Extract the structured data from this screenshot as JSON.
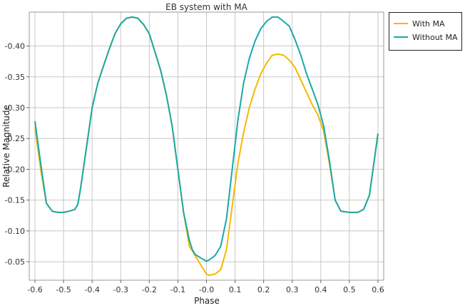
{
  "chart_data": {
    "type": "line",
    "title": "EB system with MA",
    "xlabel": "Phase",
    "ylabel": "Relative Magnitude",
    "xlim": [
      -0.62,
      0.62
    ],
    "ylim": [
      -0.02,
      -0.455
    ],
    "y_inverted": true,
    "grid": true,
    "legend_position": "top-right-outside",
    "x_ticks": [
      -0.6,
      -0.5,
      -0.4,
      -0.3,
      -0.2,
      -0.1,
      0.0,
      0.1,
      0.2,
      0.3,
      0.4,
      0.5,
      0.6
    ],
    "x_tick_labels": [
      "-0.6",
      "-0.5",
      "-0.4",
      "-0.3",
      "-0.2",
      "-0.1",
      "-0.0",
      "0.1",
      "0.2",
      "0.3",
      "0.4",
      "0.5",
      "0.6"
    ],
    "y_ticks": [
      -0.05,
      -0.1,
      -0.15,
      -0.2,
      -0.25,
      -0.3,
      -0.35,
      -0.4
    ],
    "y_tick_labels": [
      "-0.05",
      "-0.10",
      "-0.15",
      "-0.20",
      "-0.25",
      "-0.30",
      "-0.35",
      "-0.40"
    ],
    "series": [
      {
        "name": "With MA",
        "color": "#f5b800",
        "x": [
          -0.6,
          -0.58,
          -0.56,
          -0.54,
          -0.52,
          -0.5,
          -0.48,
          -0.46,
          -0.45,
          -0.44,
          -0.42,
          -0.4,
          -0.38,
          -0.36,
          -0.34,
          -0.32,
          -0.3,
          -0.28,
          -0.26,
          -0.24,
          -0.22,
          -0.2,
          -0.18,
          -0.16,
          -0.14,
          -0.12,
          -0.1,
          -0.08,
          -0.06,
          -0.05,
          -0.04,
          -0.02,
          0.0,
          0.01,
          0.03,
          0.05,
          0.07,
          0.09,
          0.11,
          0.13,
          0.15,
          0.17,
          0.19,
          0.21,
          0.23,
          0.25,
          0.27,
          0.29,
          0.31,
          0.33,
          0.35,
          0.37,
          0.39,
          0.41,
          0.43,
          0.45,
          0.47,
          0.5,
          0.53,
          0.55,
          0.57,
          0.6
        ],
        "y": [
          -0.268,
          -0.2,
          -0.145,
          -0.132,
          -0.13,
          -0.13,
          -0.132,
          -0.135,
          -0.143,
          -0.17,
          -0.235,
          -0.3,
          -0.34,
          -0.368,
          -0.395,
          -0.42,
          -0.436,
          -0.445,
          -0.447,
          -0.445,
          -0.435,
          -0.42,
          -0.39,
          -0.36,
          -0.32,
          -0.27,
          -0.2,
          -0.13,
          -0.075,
          -0.068,
          -0.06,
          -0.045,
          -0.03,
          -0.028,
          -0.03,
          -0.037,
          -0.07,
          -0.14,
          -0.21,
          -0.26,
          -0.3,
          -0.33,
          -0.355,
          -0.372,
          -0.385,
          -0.387,
          -0.385,
          -0.377,
          -0.365,
          -0.345,
          -0.325,
          -0.305,
          -0.288,
          -0.262,
          -0.21,
          -0.15,
          -0.132,
          -0.13,
          -0.13,
          -0.135,
          -0.158,
          -0.258
        ]
      },
      {
        "name": "Without MA",
        "color": "#1aa8a8",
        "x": [
          -0.6,
          -0.58,
          -0.56,
          -0.54,
          -0.52,
          -0.5,
          -0.48,
          -0.46,
          -0.45,
          -0.44,
          -0.42,
          -0.4,
          -0.38,
          -0.36,
          -0.34,
          -0.32,
          -0.3,
          -0.28,
          -0.26,
          -0.24,
          -0.22,
          -0.2,
          -0.18,
          -0.16,
          -0.14,
          -0.12,
          -0.1,
          -0.08,
          -0.06,
          -0.05,
          -0.04,
          -0.02,
          0.0,
          0.01,
          0.03,
          0.05,
          0.07,
          0.09,
          0.11,
          0.13,
          0.15,
          0.17,
          0.19,
          0.21,
          0.23,
          0.25,
          0.27,
          0.29,
          0.31,
          0.33,
          0.35,
          0.37,
          0.39,
          0.41,
          0.43,
          0.45,
          0.47,
          0.5,
          0.53,
          0.55,
          0.57,
          0.6
        ],
        "y": [
          -0.278,
          -0.21,
          -0.145,
          -0.132,
          -0.13,
          -0.13,
          -0.132,
          -0.135,
          -0.143,
          -0.17,
          -0.235,
          -0.3,
          -0.34,
          -0.368,
          -0.395,
          -0.42,
          -0.436,
          -0.445,
          -0.447,
          -0.445,
          -0.435,
          -0.42,
          -0.39,
          -0.36,
          -0.32,
          -0.27,
          -0.2,
          -0.13,
          -0.085,
          -0.07,
          -0.062,
          -0.056,
          -0.051,
          -0.053,
          -0.06,
          -0.075,
          -0.12,
          -0.2,
          -0.28,
          -0.34,
          -0.38,
          -0.408,
          -0.428,
          -0.44,
          -0.447,
          -0.447,
          -0.44,
          -0.432,
          -0.41,
          -0.385,
          -0.355,
          -0.33,
          -0.305,
          -0.27,
          -0.215,
          -0.15,
          -0.132,
          -0.13,
          -0.13,
          -0.135,
          -0.158,
          -0.258
        ]
      }
    ]
  }
}
